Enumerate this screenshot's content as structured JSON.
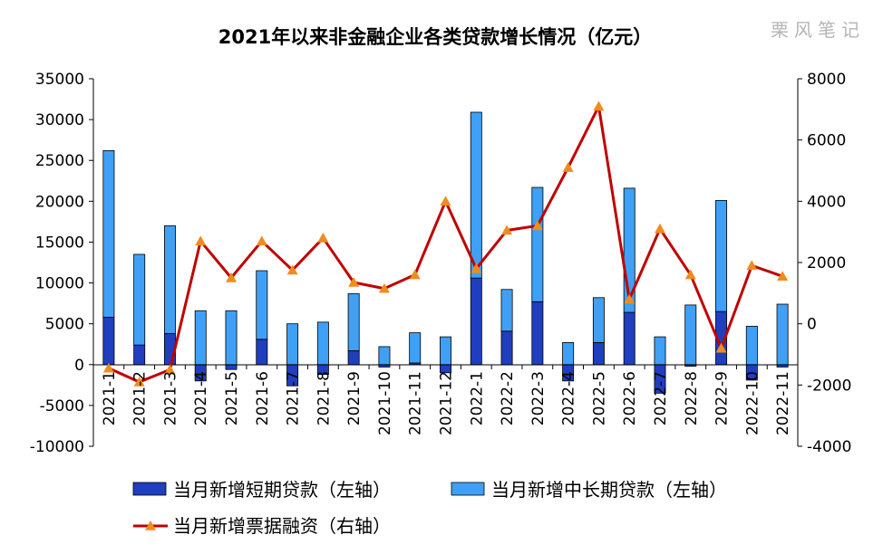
{
  "watermark": "栗风笔记",
  "chart_data": {
    "type": "bar+line",
    "title": "2021年以来非金融企业各类贷款增长情况（亿元）",
    "categories": [
      "2021-1",
      "2021-2",
      "2021-3",
      "2021-4",
      "2021-5",
      "2021-6",
      "2021-7",
      "2021-8",
      "2021-9",
      "2021-10",
      "2021-11",
      "2021-12",
      "2022-1",
      "2022-2",
      "2022-3",
      "2022-4",
      "2022-5",
      "2022-6",
      "2022-7",
      "2022-8",
      "2022-9",
      "2022-10",
      "2022-11"
    ],
    "left_axis": {
      "min": -10000,
      "max": 35000,
      "step": 5000,
      "ticks": [
        "35000",
        "30000",
        "25000",
        "20000",
        "15000",
        "10000",
        "5000",
        "0",
        "-5000",
        "-10000"
      ]
    },
    "right_axis": {
      "min": -4000,
      "max": 8000,
      "step": 2000,
      "ticks": [
        "8000",
        "6000",
        "4000",
        "2000",
        "0",
        "-2000",
        "-4000"
      ]
    },
    "series": [
      {
        "name": "当月新增短期贷款（左轴）",
        "axis": "left",
        "kind": "bar",
        "color": "#1f3fbf",
        "values": [
          5800,
          2400,
          3800,
          -2000,
          -600,
          3100,
          -2600,
          -1200,
          1700,
          -300,
          200,
          -1000,
          10600,
          4100,
          7700,
          -2000,
          2700,
          6400,
          -3500,
          -200,
          6500,
          -1900,
          -300
        ]
      },
      {
        "name": "当月新增中长期贷款（左轴）",
        "axis": "left",
        "kind": "bar",
        "color": "#3fa0f5",
        "values": [
          20400,
          11100,
          13200,
          6600,
          6600,
          8400,
          5000,
          5200,
          7000,
          2200,
          3700,
          3400,
          20300,
          5100,
          14000,
          2700,
          5500,
          15200,
          3400,
          7300,
          13600,
          4700,
          7400
        ]
      },
      {
        "name": "当月新增票据融资（右轴）",
        "axis": "right",
        "kind": "line",
        "color": "#c00000",
        "marker_color": "#f08c1e",
        "values": [
          -1450,
          -1900,
          -1500,
          2700,
          1500,
          2700,
          1750,
          2800,
          1350,
          1150,
          1600,
          4000,
          1800,
          3050,
          3200,
          5100,
          7100,
          800,
          3100,
          1600,
          -800,
          1900,
          1550
        ]
      }
    ],
    "legend_position": "bottom",
    "grid": false
  }
}
